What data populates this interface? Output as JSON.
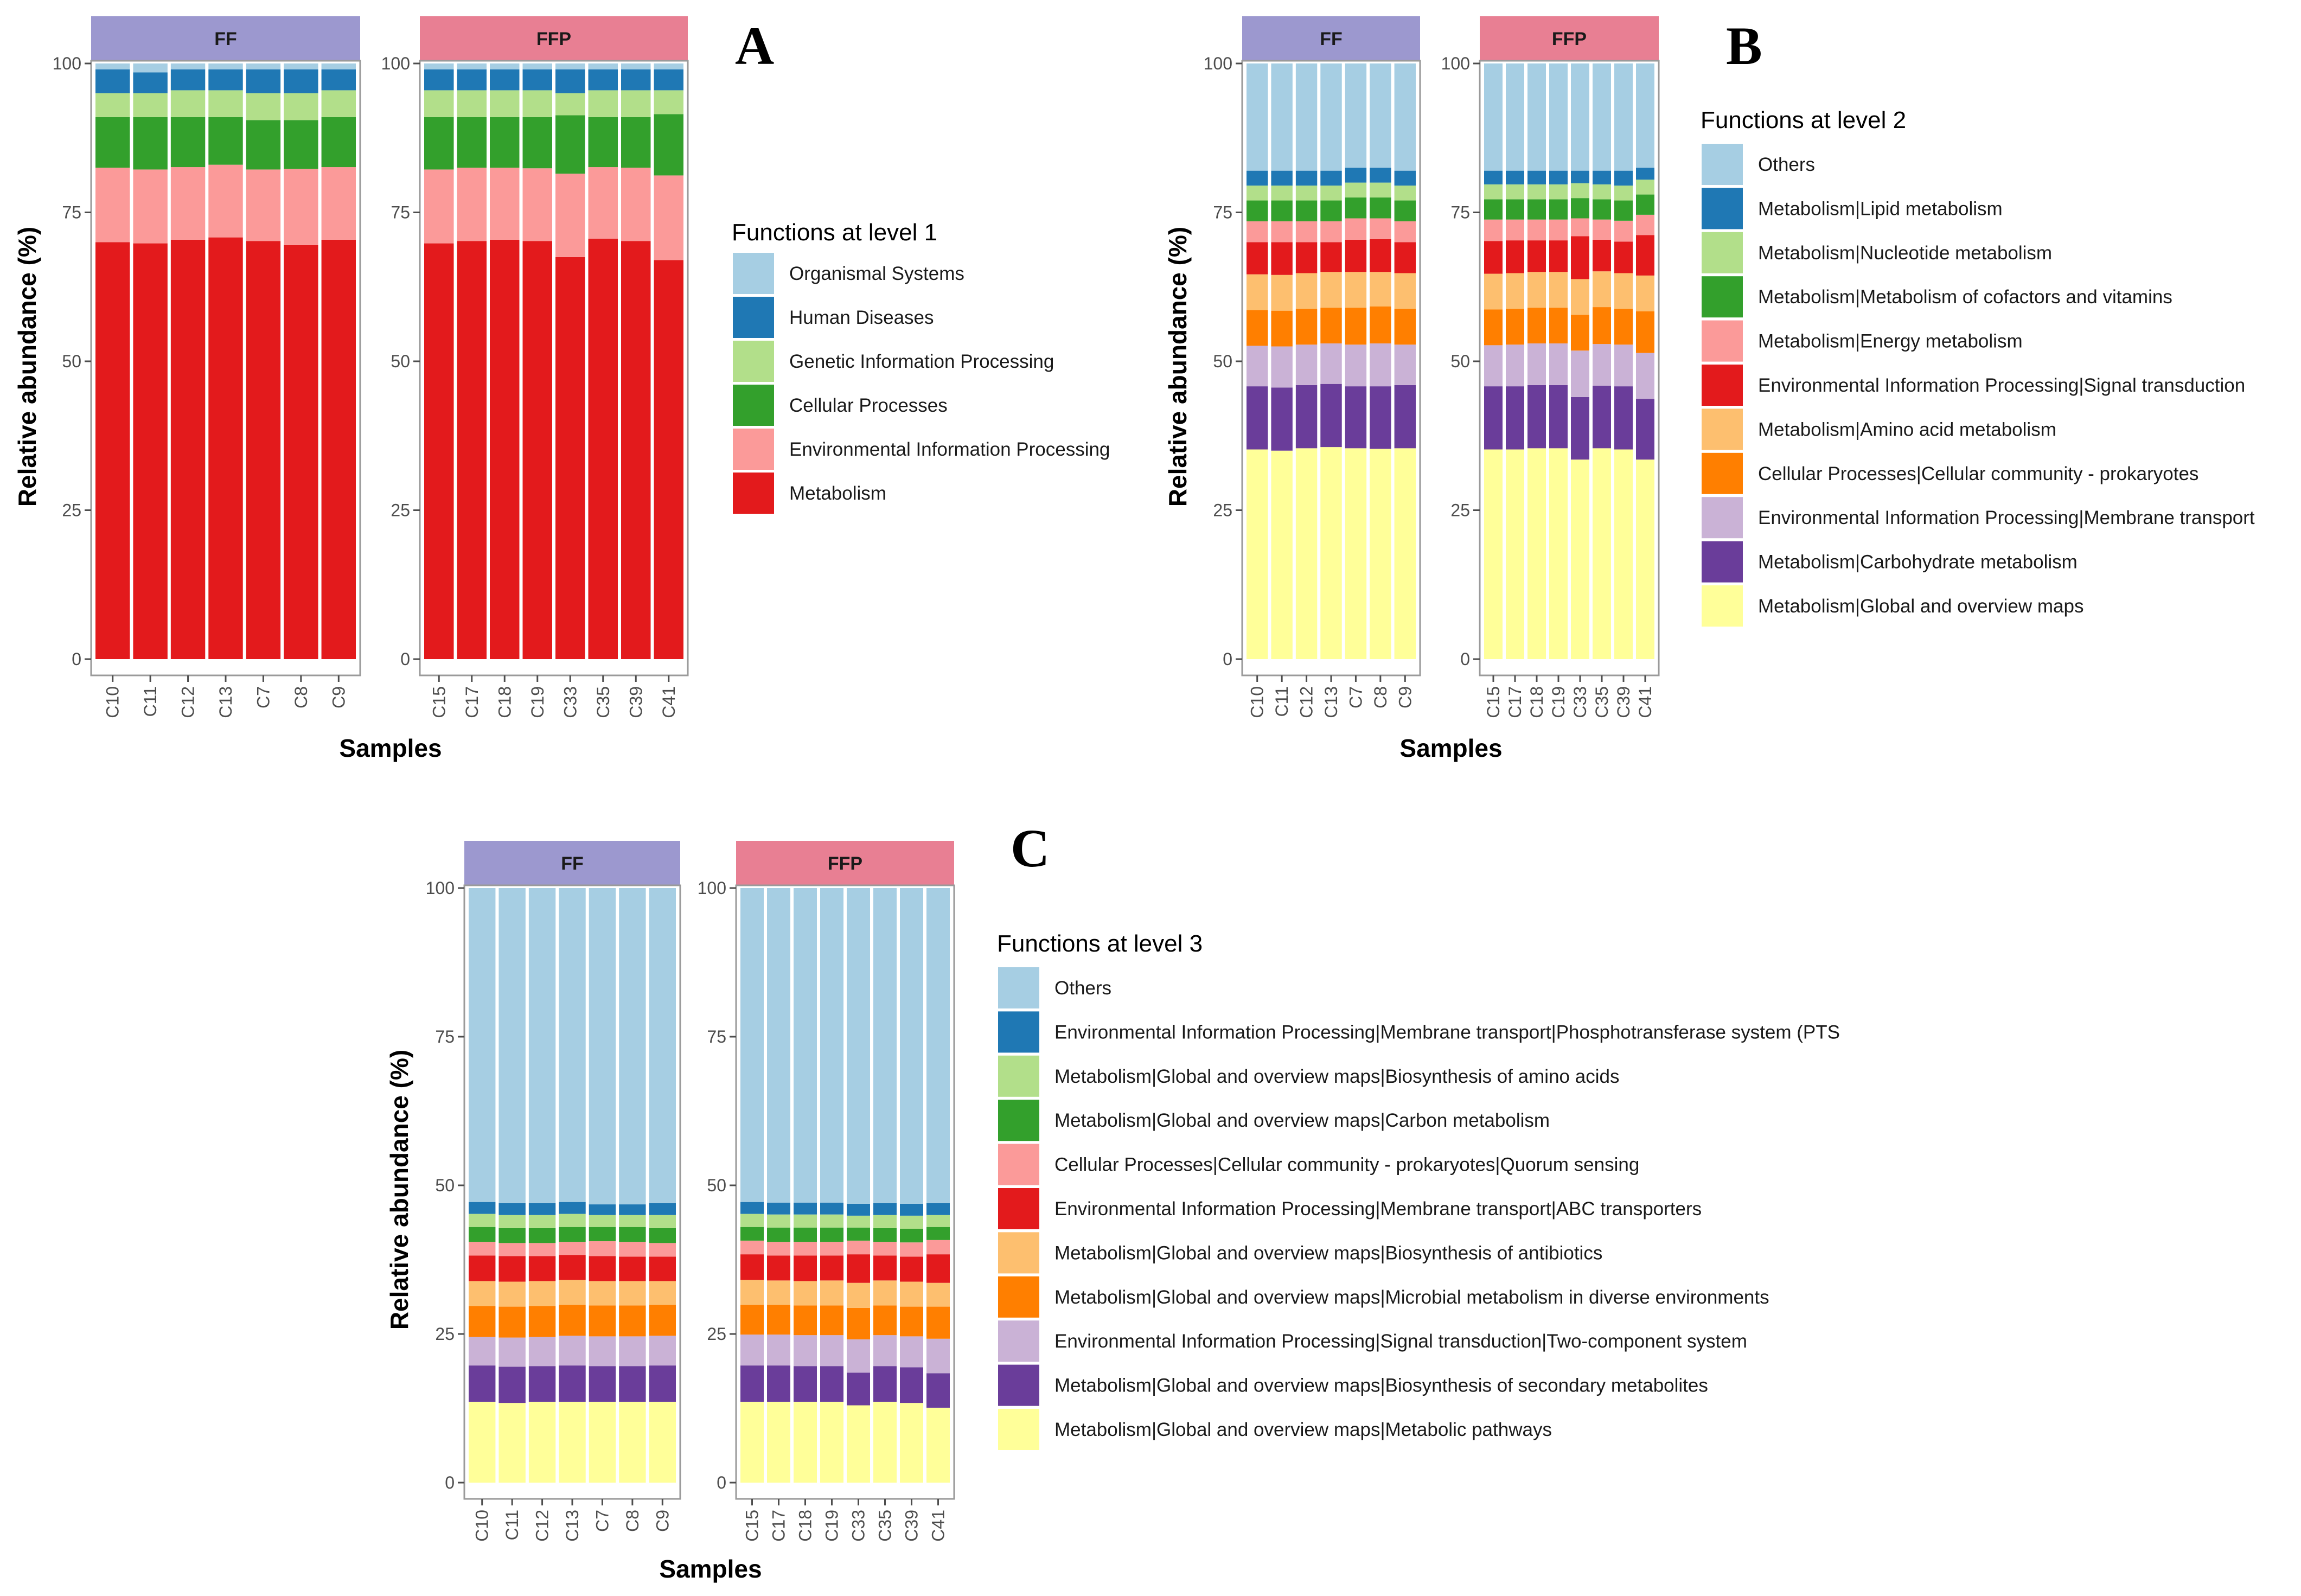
{
  "colors": {
    "ff_strip": "#9C98CF",
    "ffp_strip": "#E87F93",
    "palette": [
      "#FFFF99",
      "#6A3D9A",
      "#CAB2D6",
      "#FF7F00",
      "#FDBF6F",
      "#E31A1C",
      "#FB9A99",
      "#33A02C",
      "#B2DF8A",
      "#1F78B4",
      "#A6CEE3"
    ]
  },
  "chart_data": [
    {
      "panel": "A",
      "type": "stacked-bar",
      "ylabel": "Relative abundance (%)",
      "xlabel": "Samples",
      "ylim": [
        0,
        100
      ],
      "yticks": [
        "0",
        "25",
        "50",
        "75",
        "100"
      ],
      "legend_title": "Functions at level 1",
      "series": [
        "Metabolism",
        "Environmental Information Processing",
        "Cellular Processes",
        "Genetic Information Processing",
        "Human Diseases",
        "Organismal Systems"
      ],
      "color_index": [
        5,
        6,
        7,
        8,
        9,
        10
      ],
      "legend_order": [
        "Organismal Systems",
        "Human Diseases",
        "Genetic Information Processing",
        "Cellular Processes",
        "Environmental Information Processing",
        "Metabolism"
      ],
      "groups": [
        {
          "label": "FF",
          "samples": [
            "C10",
            "C11",
            "C12",
            "C13",
            "C7",
            "C8",
            "C9"
          ],
          "values": [
            [
              70,
              12.5,
              8.5,
              4,
              4,
              1
            ],
            [
              69.8,
              12.4,
              8.8,
              4,
              3.5,
              1.5
            ],
            [
              70.4,
              12.2,
              8.4,
              4.5,
              3.5,
              1
            ],
            [
              70.8,
              12.2,
              8,
              4.5,
              3.5,
              1
            ],
            [
              70.2,
              12,
              8.3,
              4.5,
              4,
              1
            ],
            [
              69.5,
              12.8,
              8.2,
              4.5,
              4,
              1
            ],
            [
              70.4,
              12.2,
              8.4,
              4.5,
              3.5,
              1
            ]
          ]
        },
        {
          "label": "FFP",
          "samples": [
            "C15",
            "C17",
            "C18",
            "C19",
            "C33",
            "C35",
            "C39",
            "C41"
          ],
          "values": [
            [
              69.8,
              12.4,
              8.8,
              4.5,
              3.5,
              1
            ],
            [
              70.2,
              12.3,
              8.5,
              4.5,
              3.5,
              1
            ],
            [
              70.4,
              12.1,
              8.5,
              4.5,
              3.5,
              1
            ],
            [
              70.2,
              12.2,
              8.6,
              4.5,
              3.5,
              1
            ],
            [
              67.5,
              14,
              9.8,
              3.7,
              4,
              1
            ],
            [
              70.6,
              12,
              8.4,
              4.5,
              3.5,
              1
            ],
            [
              70.2,
              12.3,
              8.5,
              4.5,
              3.5,
              1
            ],
            [
              67,
              14.2,
              10.3,
              4,
              3.5,
              1
            ]
          ]
        }
      ]
    },
    {
      "panel": "B",
      "type": "stacked-bar",
      "ylabel": "Relative abundance (%)",
      "xlabel": "Samples",
      "ylim": [
        0,
        100
      ],
      "yticks": [
        "0",
        "25",
        "50",
        "75",
        "100"
      ],
      "legend_title": "Functions at level 2",
      "series": [
        "Metabolism|Global and overview maps",
        "Metabolism|Carbohydrate metabolism",
        "Environmental Information Processing|Membrane transport",
        "Cellular Processes|Cellular community - prokaryotes",
        "Metabolism|Amino acid metabolism",
        "Environmental Information Processing|Signal transduction",
        "Metabolism|Energy metabolism",
        "Metabolism|Metabolism of cofactors and vitamins",
        "Metabolism|Nucleotide metabolism",
        "Metabolism|Lipid metabolism",
        "Others"
      ],
      "color_index": [
        0,
        1,
        2,
        3,
        4,
        5,
        6,
        7,
        8,
        9,
        10
      ],
      "legend_order": [
        "Others",
        "Metabolism|Lipid metabolism",
        "Metabolism|Nucleotide metabolism",
        "Metabolism|Metabolism of cofactors and vitamins",
        "Metabolism|Energy metabolism",
        "Environmental Information Processing|Signal transduction",
        "Metabolism|Amino acid metabolism",
        "Cellular Processes|Cellular community - prokaryotes",
        "Environmental Information Processing|Membrane transport",
        "Metabolism|Carbohydrate metabolism",
        "Metabolism|Global and overview maps"
      ],
      "groups": [
        {
          "label": "FF",
          "samples": [
            "C10",
            "C11",
            "C12",
            "C13",
            "C7",
            "C8",
            "C9"
          ],
          "values": [
            [
              35.2,
              10.6,
              6.8,
              6,
              6,
              5.4,
              3.5,
              3.5,
              2.5,
              2.5,
              18
            ],
            [
              35,
              10.6,
              6.9,
              6,
              6,
              5.5,
              3.5,
              3.5,
              2.5,
              2.5,
              18
            ],
            [
              35.4,
              10.6,
              6.8,
              6,
              6,
              5.2,
              3.5,
              3.5,
              2.5,
              2.5,
              18
            ],
            [
              35.6,
              10.6,
              6.8,
              6,
              6,
              5.0,
              3.5,
              3.5,
              2.5,
              2.5,
              18
            ],
            [
              35.4,
              10.4,
              7,
              6.2,
              6,
              5.4,
              3.6,
              3.5,
              2.5,
              2.5,
              17.5
            ],
            [
              35.3,
              10.5,
              7.2,
              6.2,
              5.8,
              5.5,
              3.5,
              3.5,
              2.5,
              2.5,
              17.5
            ],
            [
              35.4,
              10.6,
              6.8,
              6,
              6,
              5.2,
              3.5,
              3.5,
              2.5,
              2.5,
              18
            ]
          ]
        },
        {
          "label": "FFP",
          "samples": [
            "C15",
            "C17",
            "C18",
            "C19",
            "C33",
            "C35",
            "C39",
            "C41"
          ],
          "values": [
            [
              35.2,
              10.6,
              6.9,
              6,
              6,
              5.5,
              3.6,
              3.4,
              2.5,
              2.3,
              18
            ],
            [
              35.2,
              10.6,
              7,
              6,
              6,
              5.5,
              3.5,
              3.4,
              2.5,
              2.3,
              18
            ],
            [
              35.4,
              10.6,
              7,
              6,
              6,
              5.3,
              3.5,
              3.4,
              2.5,
              2.3,
              18
            ],
            [
              35.4,
              10.6,
              7,
              6,
              6,
              5.3,
              3.5,
              3.4,
              2.5,
              2.3,
              18
            ],
            [
              33.5,
              10.5,
              7.8,
              6,
              6,
              7.2,
              3.0,
              3.4,
              2.5,
              2.1,
              18
            ],
            [
              35.4,
              10.5,
              7,
              6.2,
              6,
              5.3,
              3.4,
              3.4,
              2.5,
              2.3,
              18
            ],
            [
              35.2,
              10.6,
              7,
              6,
              6,
              5.3,
              3.5,
              3.4,
              2.5,
              2.5,
              18
            ],
            [
              33.5,
              10.2,
              7.7,
              7,
              6,
              6.8,
              3.4,
              3.4,
              2.5,
              2.0,
              17.5
            ]
          ]
        }
      ]
    },
    {
      "panel": "C",
      "type": "stacked-bar",
      "ylabel": "Relative abundance (%)",
      "xlabel": "Samples",
      "ylim": [
        0,
        100
      ],
      "yticks": [
        "0",
        "25",
        "50",
        "75",
        "100"
      ],
      "legend_title": "Functions at level 3",
      "series": [
        "Metabolism|Global and overview maps|Metabolic pathways",
        "Metabolism|Global and overview maps|Biosynthesis of secondary metabolites",
        "Environmental Information Processing|Signal transduction|Two-component system",
        "Metabolism|Global and overview maps|Microbial metabolism in diverse environments",
        "Metabolism|Global and overview maps|Biosynthesis of antibiotics",
        "Environmental Information Processing|Membrane transport|ABC transporters",
        "Cellular Processes|Cellular community - prokaryotes|Quorum sensing",
        "Metabolism|Global and overview maps|Carbon metabolism",
        "Metabolism|Global and overview maps|Biosynthesis of amino acids",
        "Environmental Information Processing|Membrane transport|Phosphotransferase system (PTS",
        "Others"
      ],
      "color_index": [
        0,
        1,
        2,
        3,
        4,
        5,
        6,
        7,
        8,
        9,
        10
      ],
      "legend_order": [
        "Others",
        "Environmental Information Processing|Membrane transport|Phosphotransferase system (PTS",
        "Metabolism|Global and overview maps|Biosynthesis of amino acids",
        "Metabolism|Global and overview maps|Carbon metabolism",
        "Cellular Processes|Cellular community - prokaryotes|Quorum sensing",
        "Environmental Information Processing|Membrane transport|ABC transporters",
        "Metabolism|Global and overview maps|Biosynthesis of antibiotics",
        "Metabolism|Global and overview maps|Microbial metabolism in diverse environments",
        "Environmental Information Processing|Signal transduction|Two-component system",
        "Metabolism|Global and overview maps|Biosynthesis of secondary metabolites",
        "Metabolism|Global and overview maps|Metabolic pathways"
      ],
      "groups": [
        {
          "label": "FF",
          "samples": [
            "C10",
            "C11",
            "C12",
            "C13",
            "C7",
            "C8",
            "C9"
          ],
          "values": [
            [
              13.6,
              6.1,
              4.8,
              5.2,
              4.2,
              4.3,
              2.3,
              2.5,
              2.2,
              2.0,
              52.8
            ],
            [
              13.4,
              6.1,
              4.9,
              5.2,
              4.2,
              4.3,
              2.2,
              2.5,
              2.2,
              2.0,
              53
            ],
            [
              13.6,
              6.0,
              4.9,
              5.2,
              4.2,
              4.2,
              2.2,
              2.5,
              2.2,
              2.0,
              53
            ],
            [
              13.6,
              6.1,
              5.0,
              5.2,
              4.2,
              4.2,
              2.2,
              2.5,
              2.2,
              2.0,
              52.8
            ],
            [
              13.6,
              6.0,
              5.0,
              5.2,
              4.1,
              4.2,
              2.5,
              2.4,
              2.0,
              1.8,
              53.2
            ],
            [
              13.6,
              6.0,
              5.0,
              5.2,
              4.1,
              4.1,
              2.5,
              2.5,
              2.0,
              1.8,
              53.2
            ],
            [
              13.6,
              6.1,
              5.0,
              5.2,
              4.0,
              4.1,
              2.3,
              2.5,
              2.2,
              2.0,
              53
            ]
          ]
        },
        {
          "label": "FFP",
          "samples": [
            "C15",
            "C17",
            "C18",
            "C19",
            "C33",
            "C35",
            "C39",
            "C41"
          ],
          "values": [
            [
              13.6,
              6.1,
              5.2,
              5.0,
              4.2,
              4.3,
              2.3,
              2.3,
              2.2,
              2.0,
              52.8
            ],
            [
              13.6,
              6.1,
              5.2,
              5.0,
              4.1,
              4.2,
              2.3,
              2.4,
              2.2,
              2.0,
              52.9
            ],
            [
              13.6,
              6.0,
              5.2,
              5.0,
              4.1,
              4.3,
              2.3,
              2.4,
              2.2,
              2.0,
              52.9
            ],
            [
              13.6,
              6.0,
              5.2,
              5.0,
              4.2,
              4.2,
              2.3,
              2.4,
              2.2,
              2.0,
              52.9
            ],
            [
              13.0,
              5.5,
              5.6,
              5.3,
              4.2,
              4.8,
              2.3,
              2.2,
              2.0,
              2.0,
              53.1
            ],
            [
              13.6,
              6.0,
              5.2,
              5.0,
              4.2,
              4.2,
              2.3,
              2.3,
              2.2,
              2.0,
              53
            ],
            [
              13.4,
              6.0,
              5.2,
              5.0,
              4.2,
              4.2,
              2.4,
              2.3,
              2.2,
              2.0,
              53.1
            ],
            [
              12.6,
              5.8,
              5.8,
              5.4,
              4.0,
              4.8,
              2.4,
              2.2,
              2.0,
              2.0,
              53
            ]
          ]
        }
      ]
    }
  ]
}
